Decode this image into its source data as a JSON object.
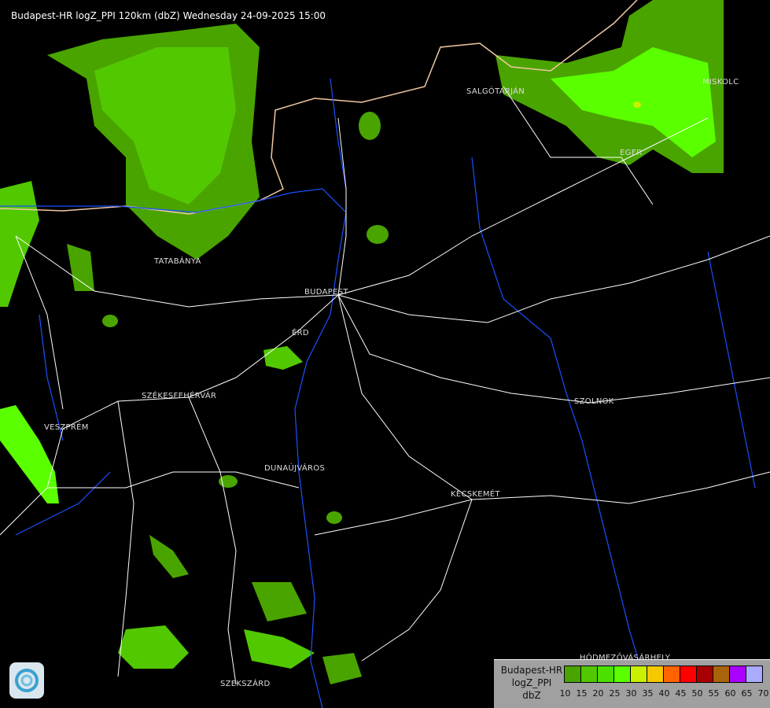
{
  "title": "Budapest-HR logZ_PPI 120km (dbZ) Wednesday 24-09-2025 15:00",
  "cities": [
    {
      "name": "SALGÓTARJÁN"
    },
    {
      "name": "MISKOLC"
    },
    {
      "name": "EGER"
    },
    {
      "name": "TATABÁNYA"
    },
    {
      "name": "BUDAPEST"
    },
    {
      "name": "ÉRD"
    },
    {
      "name": "SZÉKESFEHÉRVÁR"
    },
    {
      "name": "VESZPRÉM"
    },
    {
      "name": "SZOLNOK"
    },
    {
      "name": "DUNAÚJVÁROS"
    },
    {
      "name": "KECSKEMÉT"
    },
    {
      "name": "HÓDMEZŐVÁSÁRHELY"
    },
    {
      "name": "SZEKSZÁRD"
    }
  ],
  "legend": {
    "line1": "Budapest-HR",
    "line2": "logZ_PPI",
    "line3": "dbZ",
    "ticks": [
      "10",
      "15",
      "20",
      "25",
      "30",
      "35",
      "40",
      "45",
      "50",
      "55",
      "60",
      "65",
      "70"
    ],
    "colors": [
      "#4aa400",
      "#52c800",
      "#4ce000",
      "#5aff00",
      "#c8f000",
      "#f5c800",
      "#ff6400",
      "#ff0000",
      "#a80000",
      "#a8640a",
      "#aa00ff",
      "#aaaaff"
    ]
  },
  "colors": {
    "background": "#000000",
    "rivers": "#1a50ff",
    "roads": "#ffffff",
    "border": "#f0c8a0"
  }
}
